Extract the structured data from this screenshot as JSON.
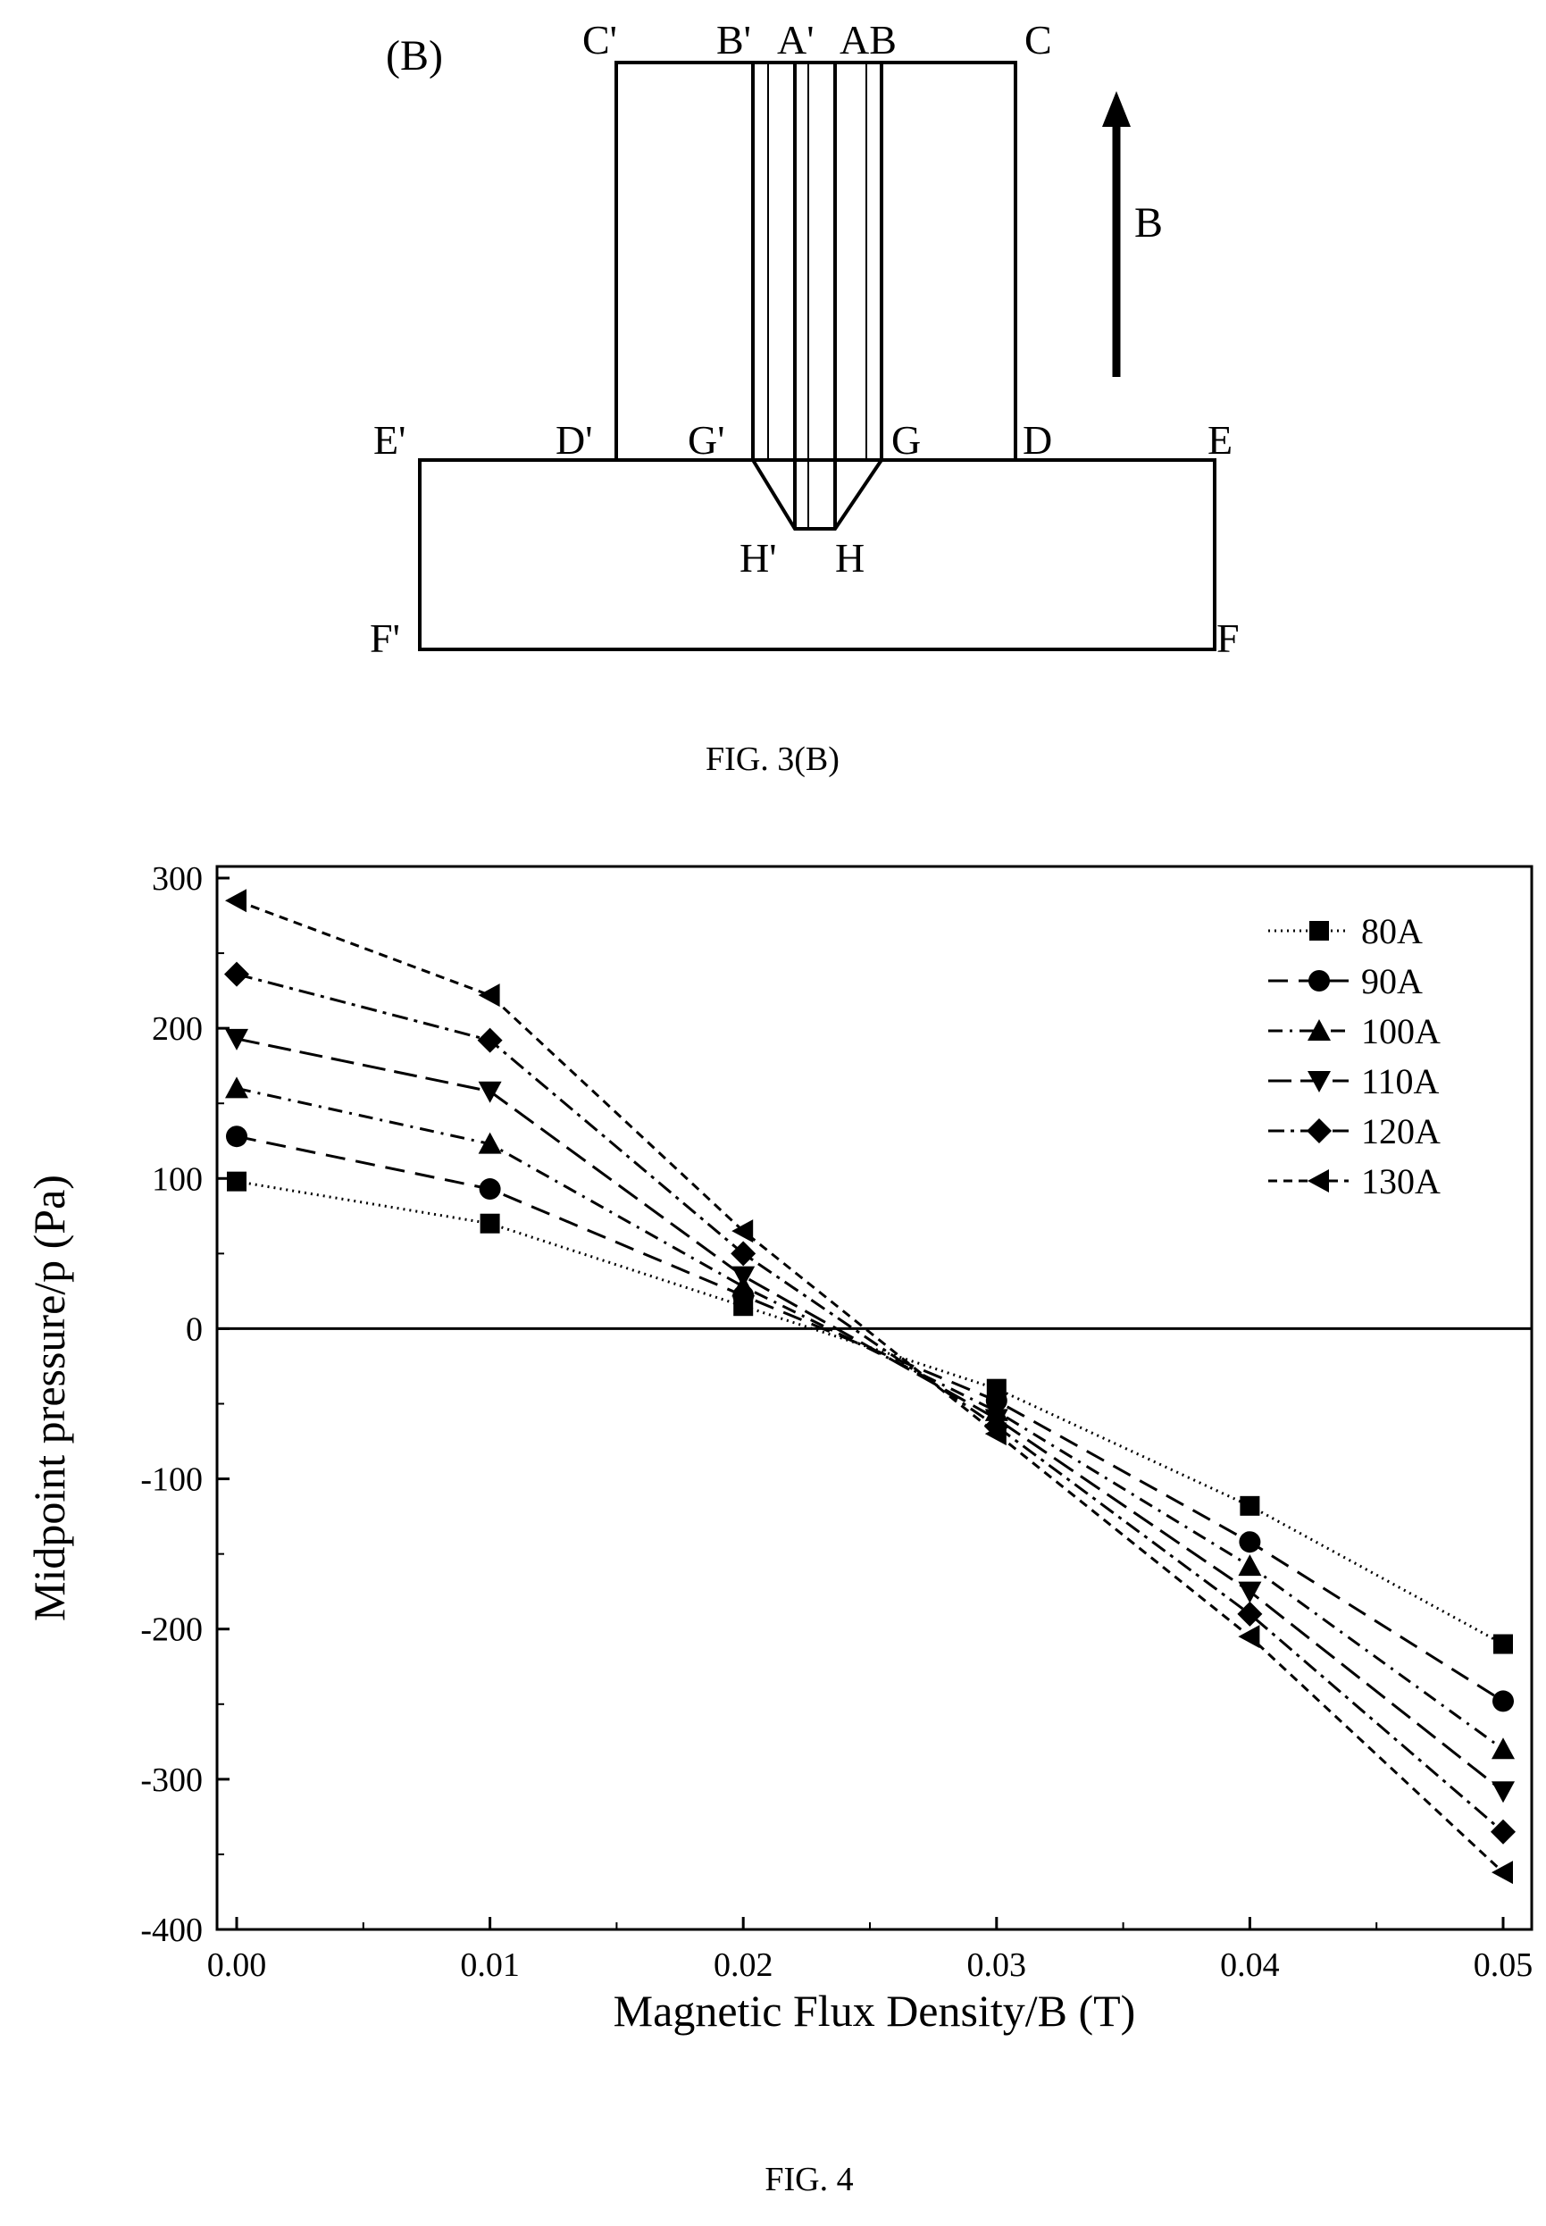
{
  "figure3b": {
    "panel_label": "(B)",
    "caption": "FIG. 3(B)",
    "field_arrow_label": "B",
    "point_labels": {
      "C_prime": "C'",
      "B_prime": "B'",
      "A_prime": "A'",
      "AB": "AB",
      "C": "C",
      "E_prime": "E'",
      "D_prime": "D'",
      "G_prime": "G'",
      "G": "G",
      "D": "D",
      "E": "E",
      "H_prime": "H'",
      "H": "H",
      "F_prime": "F'",
      "F": "F"
    }
  },
  "figure4": {
    "caption": "FIG. 4"
  },
  "chart_data": {
    "type": "line",
    "xlabel": "Magnetic Flux Density/B (T)",
    "ylabel": "Midpoint pressure/p (Pa)",
    "xlim": [
      0.0,
      0.05
    ],
    "ylim": [
      -400,
      300
    ],
    "x_ticks": [
      "0.00",
      "0.01",
      "0.02",
      "0.03",
      "0.04",
      "0.05"
    ],
    "y_ticks": [
      "300",
      "200",
      "100",
      "0",
      "-100",
      "-200",
      "-300",
      "-400"
    ],
    "grid": false,
    "legend_position": "top-right",
    "zero_line": true,
    "x": [
      0.0,
      0.01,
      0.02,
      0.03,
      0.04,
      0.05
    ],
    "series": [
      {
        "name": "80A",
        "marker": "square",
        "dash": "dotted",
        "values": [
          98,
          70,
          15,
          -40,
          -118,
          -210
        ]
      },
      {
        "name": "90A",
        "marker": "circle",
        "dash": "dashed",
        "values": [
          128,
          93,
          22,
          -48,
          -142,
          -248
        ]
      },
      {
        "name": "100A",
        "marker": "triangle-up",
        "dash": "dash-dot",
        "values": [
          160,
          123,
          28,
          -55,
          -158,
          -280
        ]
      },
      {
        "name": "110A",
        "marker": "triangle-down",
        "dash": "long-dash",
        "values": [
          193,
          158,
          35,
          -60,
          -175,
          -308
        ]
      },
      {
        "name": "120A",
        "marker": "diamond",
        "dash": "dash-dot-2",
        "values": [
          236,
          192,
          50,
          -65,
          -190,
          -335
        ]
      },
      {
        "name": "130A",
        "marker": "triangle-left",
        "dash": "short-dash",
        "values": [
          285,
          222,
          65,
          -70,
          -205,
          -362
        ]
      }
    ]
  }
}
